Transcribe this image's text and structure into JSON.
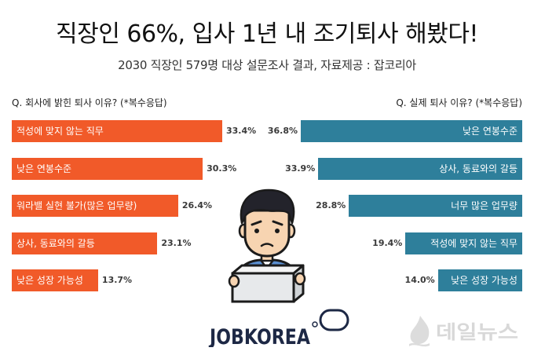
{
  "header": {
    "title": "직장인 66%, 입사 1년 내 조기퇴사 해봤다!",
    "subtitle": "2030 직장인 579명 대상 설문조사 결과, 자료제공 : 잡코리아"
  },
  "chart_data": [
    {
      "type": "bar",
      "orientation": "horizontal",
      "title": "Q. 회사에 밝힌 퇴사 이유? (*복수응답)",
      "categories": [
        "적성에 맞지 않는 직무",
        "낮은 연봉수준",
        "워라밸 실현 불가(많은 업무량)",
        "상사, 동료와의 갈등",
        "낮은 성장 가능성"
      ],
      "values": [
        33.4,
        30.3,
        26.4,
        23.1,
        13.7
      ],
      "unit": "%",
      "bar_color": "#f15a29",
      "grid": false
    },
    {
      "type": "bar",
      "orientation": "horizontal",
      "title": "Q. 실제 퇴사 이유? (*복수응답)",
      "categories": [
        "낮은 연봉수준",
        "상사, 동료와의 갈등",
        "너무 많은 업무량",
        "적성에 맞지 않는 직무",
        "낮은 성장 가능성"
      ],
      "values": [
        36.8,
        33.9,
        28.8,
        19.4,
        14.0
      ],
      "unit": "%",
      "bar_color": "#2e7f9b",
      "grid": false
    }
  ],
  "illustration": {
    "icon": "worried-office-worker-holding-box-icon"
  },
  "logo": {
    "text": "JOBKOREA",
    "color": "#1d2845"
  },
  "watermark": {
    "text": "데일뉴스",
    "icon": "flame-logo-icon",
    "color": "#d8d8d8"
  }
}
